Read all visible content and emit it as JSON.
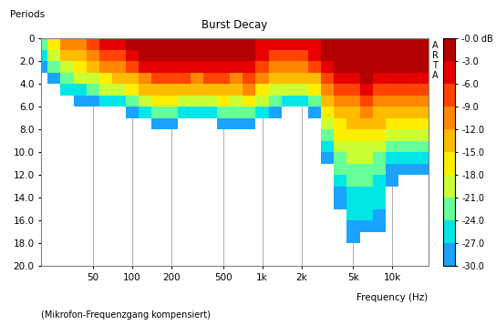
{
  "chart_data": {
    "type": "burst_decay",
    "title": "Burst Decay",
    "y_label": "Periods",
    "x_label": "Frequency (Hz)",
    "logo": "ARTA",
    "note": "(Mikrofon-Frequenzgang kompensiert)",
    "log": "x",
    "grid": "x",
    "xlim": [
      20,
      19000
    ],
    "ylim": [
      20,
      0
    ],
    "xticks": [
      50,
      100,
      200,
      500,
      {
        "value": 1000,
        "label": "1k"
      },
      {
        "value": 2000,
        "label": "2k"
      },
      {
        "value": 5000,
        "label": "5k"
      },
      {
        "value": 10000,
        "label": "10k"
      }
    ],
    "yticks": [
      0,
      {
        "value": 2,
        "label": "2.0"
      },
      {
        "value": 4,
        "label": "4.0"
      },
      {
        "value": 6,
        "label": "6.0"
      },
      {
        "value": 8,
        "label": "8.0"
      },
      {
        "value": 10,
        "label": "10.0"
      },
      {
        "value": 12,
        "label": "12.0"
      },
      {
        "value": 14,
        "label": "14.0"
      },
      {
        "value": 16,
        "label": "16.0"
      },
      {
        "value": 18,
        "label": "18.0"
      },
      {
        "value": 20,
        "label": "20.0"
      }
    ],
    "colors": [
      "#1aa3ff",
      "#00e6e6",
      "#66ff99",
      "#ccff33",
      "#ffee00",
      "#ffbb00",
      "#ff8800",
      "#ff4400",
      "#e60000",
      "#b30000"
    ],
    "colorbar": {
      "lim": [
        -30,
        0
      ],
      "ticks": [
        {
          "value": 0,
          "label": "-0.0 dB"
        },
        {
          "value": -3,
          "label": "-3.0"
        },
        {
          "value": -6,
          "label": "-6.0"
        },
        {
          "value": -9,
          "label": "-9.0"
        },
        {
          "value": -12,
          "label": "-12.0"
        },
        {
          "value": -15,
          "label": "-15.0"
        },
        {
          "value": -18,
          "label": "-18.0"
        },
        {
          "value": -21,
          "label": "-21.0"
        },
        {
          "value": -24,
          "label": "-24.0"
        },
        {
          "value": -27,
          "label": "-27.0"
        },
        {
          "value": -30,
          "label": "-30.0"
        }
      ]
    },
    "x_edges": [
      17.8,
      22.4,
      28.2,
      35.5,
      44.7,
      56.2,
      70.8,
      89.1,
      112,
      141,
      178,
      224,
      282,
      355,
      447,
      562,
      708,
      891,
      1122,
      1413,
      1778,
      2239,
      2818,
      3548,
      4467,
      5623,
      7079,
      8913,
      11220,
      14125,
      19000
    ],
    "y_edges": [
      0,
      1,
      2,
      3,
      4,
      5,
      6,
      7,
      8,
      9,
      10,
      11,
      12,
      13,
      14,
      15,
      16,
      17,
      18,
      19,
      20
    ],
    "decay": [
      [
        -22,
        -25,
        -28,
        null,
        null,
        null,
        null,
        null,
        null,
        null,
        null,
        null,
        null,
        null,
        null,
        null,
        null,
        null,
        null,
        null
      ],
      [
        -17,
        -20,
        -24,
        -28,
        null,
        null,
        null,
        null,
        null,
        null,
        null,
        null,
        null,
        null,
        null,
        null,
        null,
        null,
        null,
        null
      ],
      [
        -12,
        -15,
        -19,
        -23,
        -27,
        null,
        null,
        null,
        null,
        null,
        null,
        null,
        null,
        null,
        null,
        null,
        null,
        null,
        null,
        null
      ],
      [
        -10,
        -13,
        -17,
        -21,
        -25,
        -29,
        null,
        null,
        null,
        null,
        null,
        null,
        null,
        null,
        null,
        null,
        null,
        null,
        null,
        null
      ],
      [
        -8,
        -11,
        -15,
        -19,
        -23,
        -28,
        null,
        null,
        null,
        null,
        null,
        null,
        null,
        null,
        null,
        null,
        null,
        null,
        null,
        null
      ],
      [
        -6,
        -8,
        -12,
        -16,
        -21,
        -26,
        null,
        null,
        null,
        null,
        null,
        null,
        null,
        null,
        null,
        null,
        null,
        null,
        null,
        null
      ],
      [
        -5,
        -7,
        -11,
        -15,
        -20,
        -25,
        null,
        null,
        null,
        null,
        null,
        null,
        null,
        null,
        null,
        null,
        null,
        null,
        null,
        null
      ],
      [
        -3,
        -5,
        -9,
        -13,
        -18,
        -23,
        -28,
        null,
        null,
        null,
        null,
        null,
        null,
        null,
        null,
        null,
        null,
        null,
        null,
        null
      ],
      [
        -1,
        -3,
        -6,
        -10,
        -14,
        -19,
        -25,
        null,
        null,
        null,
        null,
        null,
        null,
        null,
        null,
        null,
        null,
        null,
        null,
        null
      ],
      [
        -0.5,
        -2,
        -5,
        -9,
        -13,
        -18,
        -24,
        -29,
        null,
        null,
        null,
        null,
        null,
        null,
        null,
        null,
        null,
        null,
        null,
        null
      ],
      [
        -0.5,
        -2,
        -5,
        -9,
        -13,
        -18,
        -24,
        -29,
        null,
        null,
        null,
        null,
        null,
        null,
        null,
        null,
        null,
        null,
        null,
        null
      ],
      [
        -1,
        -2,
        -5,
        -9,
        -13,
        -19,
        -25,
        null,
        null,
        null,
        null,
        null,
        null,
        null,
        null,
        null,
        null,
        null,
        null,
        null
      ],
      [
        -1,
        -3,
        -6,
        -10,
        -14,
        -19,
        -25,
        null,
        null,
        null,
        null,
        null,
        null,
        null,
        null,
        null,
        null,
        null,
        null,
        null
      ],
      [
        -1,
        -2,
        -5,
        -9,
        -14,
        -19,
        -25,
        null,
        null,
        null,
        null,
        null,
        null,
        null,
        null,
        null,
        null,
        null,
        null,
        null
      ],
      [
        -1,
        -2,
        -5,
        -9,
        -13,
        -18,
        -24,
        -29,
        null,
        null,
        null,
        null,
        null,
        null,
        null,
        null,
        null,
        null,
        null,
        null
      ],
      [
        -1,
        -3,
        -6,
        -10,
        -14,
        -19,
        -24,
        -28,
        null,
        null,
        null,
        null,
        null,
        null,
        null,
        null,
        null,
        null,
        null,
        null
      ],
      [
        -2,
        -2,
        -4,
        -8,
        -12,
        -17,
        -22,
        -28,
        null,
        null,
        null,
        null,
        null,
        null,
        null,
        null,
        null,
        null,
        null,
        null
      ],
      [
        -4,
        -5,
        -8,
        -12,
        -16,
        -21,
        -27,
        null,
        null,
        null,
        null,
        null,
        null,
        null,
        null,
        null,
        null,
        null,
        null,
        null
      ],
      [
        -5,
        -7,
        -10,
        -14,
        -19,
        -24,
        -29,
        null,
        null,
        null,
        null,
        null,
        null,
        null,
        null,
        null,
        null,
        null,
        null,
        null
      ],
      [
        -6,
        -7,
        -11,
        -15,
        -20,
        -25,
        null,
        null,
        null,
        null,
        null,
        null,
        null,
        null,
        null,
        null,
        null,
        null,
        null,
        null
      ],
      [
        -6,
        -7,
        -11,
        -15,
        -20,
        -26,
        null,
        null,
        null,
        null,
        null,
        null,
        null,
        null,
        null,
        null,
        null,
        null,
        null,
        null
      ],
      [
        -4,
        -5,
        -8,
        -13,
        -18,
        -23,
        -28,
        null,
        null,
        null,
        null,
        null,
        null,
        null,
        null,
        null,
        null,
        null,
        null,
        null
      ],
      [
        -2,
        -2,
        -4,
        -7,
        -11,
        -14,
        -17,
        -20,
        -23,
        -26,
        -29,
        null,
        null,
        null,
        null,
        null,
        null,
        null,
        null,
        null
      ],
      [
        -1,
        -1,
        -2,
        -4,
        -7,
        -10,
        -13,
        -16,
        -18,
        -20,
        -22,
        -24,
        -26,
        -28,
        -29,
        null,
        null,
        null,
        null,
        null
      ],
      [
        -1,
        -1,
        -2,
        -4,
        -7,
        -10,
        -13,
        -15,
        -17,
        -19,
        -21,
        -22,
        -24,
        -25,
        -26,
        -27,
        -28,
        -29,
        null,
        null
      ],
      [
        -0.5,
        -1,
        -2,
        -3,
        -6,
        -9,
        -12,
        -15,
        -17,
        -19,
        -21,
        -22,
        -23,
        -25,
        -26,
        -27,
        -29,
        null,
        null,
        null
      ],
      [
        -0.5,
        -1,
        -2,
        -4,
        -7,
        -10,
        -13,
        -15,
        -18,
        -20,
        -22,
        -23,
        -25,
        -26,
        -27,
        -28,
        -29,
        null,
        null,
        null
      ],
      [
        -1,
        -2,
        -3,
        -6,
        -9,
        -12,
        -15,
        -18,
        -21,
        -24,
        -26,
        -28,
        -29,
        null,
        null,
        null,
        null,
        null,
        null,
        null
      ],
      [
        -0.5,
        -1,
        -3,
        -5,
        -8,
        -11,
        -14,
        -17,
        -20,
        -23,
        -26,
        -29,
        null,
        null,
        null,
        null,
        null,
        null,
        null,
        null
      ],
      [
        -0.5,
        -1,
        -2,
        -4,
        -7,
        -10,
        -13,
        -16,
        -19,
        -22,
        -25,
        -28,
        null,
        null,
        null,
        null,
        null,
        null,
        null,
        null
      ]
    ]
  }
}
